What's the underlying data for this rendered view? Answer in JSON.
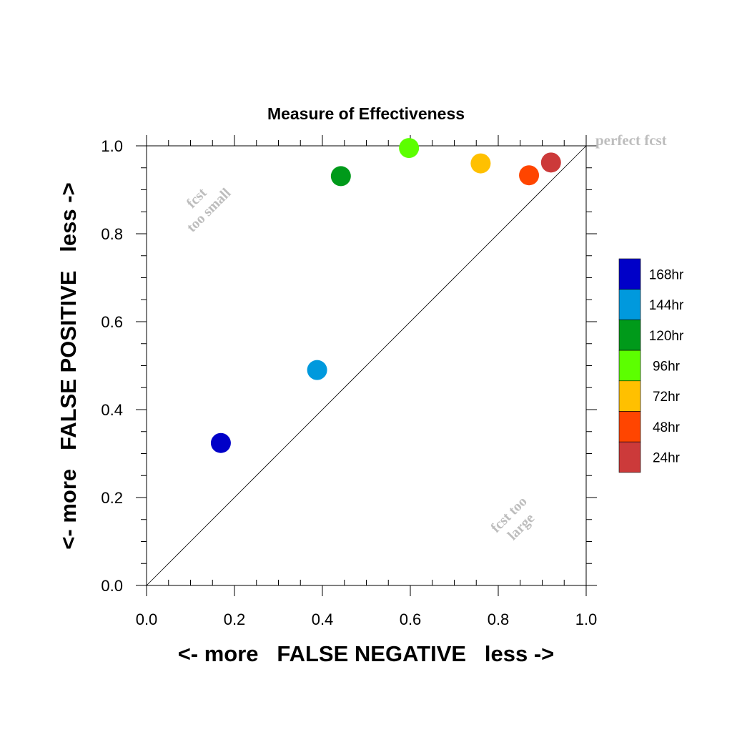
{
  "chart_data": {
    "type": "scatter",
    "title": "Measure of Effectiveness",
    "xlabel": "<- more   FALSE NEGATIVE   less ->",
    "ylabel": "<- more   FALSE POSITIVE   less ->",
    "xlim": [
      0.0,
      1.0
    ],
    "ylim": [
      0.0,
      1.0
    ],
    "x_ticks": [
      "0.0",
      "0.2",
      "0.4",
      "0.6",
      "0.8",
      "1.0"
    ],
    "y_ticks": [
      "0.0",
      "0.2",
      "0.4",
      "0.6",
      "0.8",
      "1.0"
    ],
    "reference_line": "diagonal y = x",
    "grid": false,
    "legend_placement": "right",
    "annotations": {
      "perfect": "perfect fcst",
      "too_small_1": "fcst",
      "too_small_2": "too small",
      "too_large_1": "fcst too",
      "too_large_2": "large"
    },
    "series": [
      {
        "name": "168hr",
        "color": "#0000c8",
        "x": 0.169,
        "y": 0.324
      },
      {
        "name": "144hr",
        "color": "#0099dd",
        "x": 0.388,
        "y": 0.49
      },
      {
        "name": "120hr",
        "color": "#009a1a",
        "x": 0.442,
        "y": 0.931
      },
      {
        "name": "96hr",
        "color": "#5cff00",
        "x": 0.597,
        "y": 0.995
      },
      {
        "name": "72hr",
        "color": "#ffc000",
        "x": 0.76,
        "y": 0.96
      },
      {
        "name": "48hr",
        "color": "#ff4500",
        "x": 0.87,
        "y": 0.933
      },
      {
        "name": "24hr",
        "color": "#cc3a3a",
        "x": 0.92,
        "y": 0.962
      }
    ]
  }
}
